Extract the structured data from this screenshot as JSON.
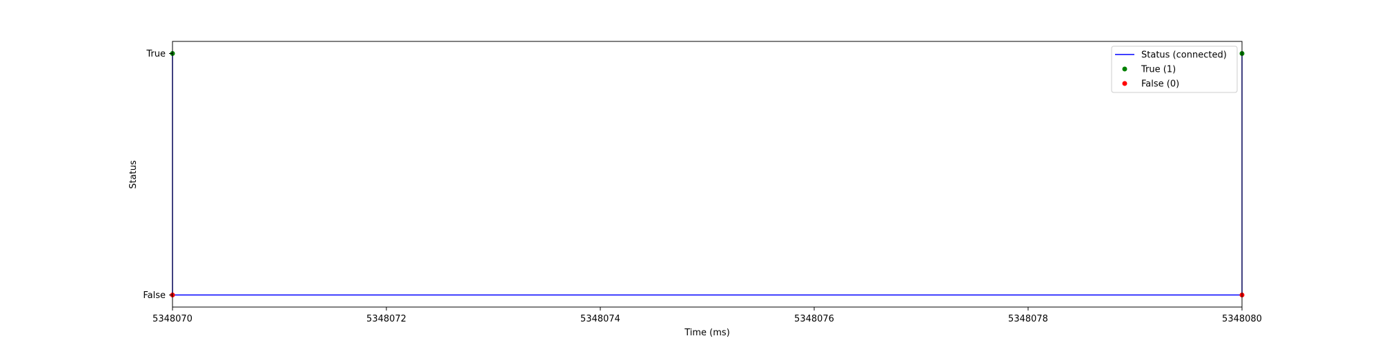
{
  "chart_data": {
    "type": "line",
    "xlabel": "Time (ms)",
    "ylabel": "Status",
    "xlim": [
      5348070,
      5348080
    ],
    "ylim": [
      -0.05,
      1.05
    ],
    "x_ticks": [
      5348070,
      5348072,
      5348074,
      5348076,
      5348078,
      5348080
    ],
    "x_tick_labels": [
      "5348070",
      "5348072",
      "5348074",
      "5348076",
      "5348078",
      "5348080"
    ],
    "y_ticks": [
      0,
      1
    ],
    "y_tick_labels": [
      "False",
      "True"
    ],
    "grid": false,
    "legend_position": "top-right",
    "series": [
      {
        "name": "Status (connected)",
        "kind": "line",
        "color": "#0000ff",
        "x": [
          5348070,
          5348070,
          5348080,
          5348080
        ],
        "y": [
          1,
          0,
          0,
          1
        ]
      },
      {
        "name": "True (1)",
        "kind": "scatter",
        "color": "#008000",
        "x": [
          5348070,
          5348080
        ],
        "y": [
          1,
          1
        ]
      },
      {
        "name": "False (0)",
        "kind": "scatter",
        "color": "#ff0000",
        "x": [
          5348070,
          5348080
        ],
        "y": [
          0,
          0
        ]
      }
    ]
  }
}
